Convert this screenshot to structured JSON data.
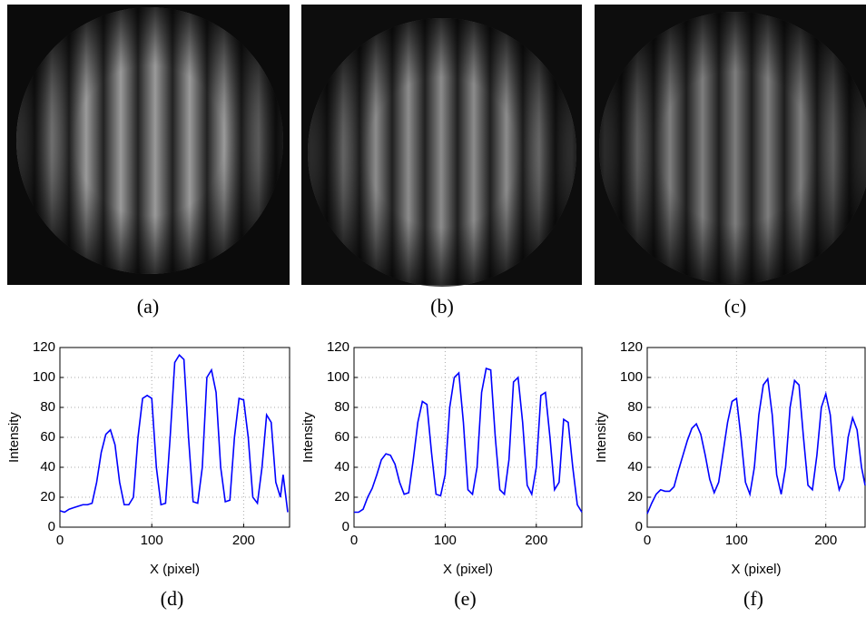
{
  "images": [
    {
      "caption": "(a)"
    },
    {
      "caption": "(b)"
    },
    {
      "caption": "(c)"
    }
  ],
  "chart_data": [
    {
      "type": "line",
      "caption": "(d)",
      "x_label": "X (pixel)",
      "y_label": "Intensity",
      "grid": true,
      "xlim": [
        0,
        250
      ],
      "ylim": [
        0,
        120
      ],
      "xticks": [
        0,
        100,
        200
      ],
      "yticks": [
        0,
        20,
        40,
        60,
        80,
        100,
        120
      ],
      "x": [
        0,
        5,
        10,
        15,
        20,
        25,
        30,
        35,
        40,
        45,
        50,
        55,
        60,
        65,
        70,
        75,
        80,
        85,
        90,
        95,
        100,
        105,
        110,
        115,
        120,
        125,
        130,
        135,
        140,
        145,
        150,
        155,
        160,
        165,
        170,
        175,
        180,
        185,
        190,
        195,
        200,
        205,
        210,
        215,
        220,
        225,
        230,
        235,
        240,
        243,
        248
      ],
      "series": [
        {
          "color": "#0000ff",
          "values": [
            11,
            10,
            12,
            13,
            14,
            15,
            15,
            16,
            30,
            50,
            62,
            65,
            55,
            30,
            15,
            15,
            20,
            60,
            86,
            88,
            86,
            40,
            15,
            16,
            60,
            110,
            115,
            112,
            60,
            17,
            16,
            40,
            100,
            105,
            90,
            40,
            17,
            18,
            60,
            86,
            85,
            60,
            20,
            16,
            40,
            75,
            70,
            30,
            20,
            35,
            10
          ]
        }
      ]
    },
    {
      "type": "line",
      "caption": "(e)",
      "x_label": "X (pixel)",
      "y_label": "Intensity",
      "grid": true,
      "xlim": [
        0,
        250
      ],
      "ylim": [
        0,
        120
      ],
      "xticks": [
        0,
        100,
        200
      ],
      "yticks": [
        0,
        20,
        40,
        60,
        80,
        100,
        120
      ],
      "x": [
        0,
        5,
        10,
        15,
        20,
        25,
        30,
        35,
        40,
        45,
        50,
        55,
        60,
        65,
        70,
        75,
        80,
        85,
        90,
        95,
        100,
        105,
        110,
        115,
        120,
        125,
        130,
        135,
        140,
        145,
        150,
        155,
        160,
        165,
        170,
        175,
        180,
        185,
        190,
        195,
        200,
        205,
        210,
        215,
        220,
        225,
        230,
        235,
        240,
        245,
        250
      ],
      "series": [
        {
          "color": "#0000ff",
          "values": [
            10,
            10,
            12,
            20,
            26,
            35,
            45,
            49,
            48,
            42,
            30,
            22,
            23,
            45,
            70,
            84,
            82,
            50,
            22,
            21,
            35,
            80,
            100,
            103,
            70,
            25,
            22,
            40,
            90,
            106,
            105,
            60,
            25,
            22,
            45,
            97,
            100,
            70,
            28,
            22,
            40,
            88,
            90,
            60,
            25,
            30,
            72,
            70,
            40,
            15,
            10
          ]
        }
      ]
    },
    {
      "type": "line",
      "caption": "(f)",
      "x_label": "X (pixel)",
      "y_label": "Intensity",
      "grid": true,
      "xlim": [
        0,
        244
      ],
      "ylim": [
        0,
        120
      ],
      "xticks": [
        0,
        100,
        200
      ],
      "yticks": [
        0,
        20,
        40,
        60,
        80,
        100,
        120
      ],
      "x": [
        0,
        5,
        10,
        15,
        20,
        25,
        30,
        35,
        40,
        45,
        50,
        55,
        60,
        65,
        70,
        75,
        80,
        85,
        90,
        95,
        100,
        105,
        110,
        115,
        120,
        125,
        130,
        135,
        140,
        145,
        150,
        155,
        160,
        165,
        170,
        175,
        180,
        185,
        190,
        195,
        200,
        205,
        210,
        215,
        220,
        225,
        230,
        235,
        240,
        244
      ],
      "series": [
        {
          "color": "#0000ff",
          "values": [
            9,
            16,
            22,
            25,
            24,
            24,
            27,
            38,
            48,
            58,
            66,
            69,
            62,
            48,
            32,
            23,
            30,
            50,
            70,
            84,
            86,
            60,
            30,
            22,
            40,
            75,
            95,
            99,
            75,
            35,
            22,
            40,
            80,
            98,
            95,
            60,
            28,
            25,
            48,
            80,
            89,
            75,
            40,
            25,
            32,
            60,
            73,
            65,
            40,
            28
          ]
        }
      ]
    }
  ]
}
